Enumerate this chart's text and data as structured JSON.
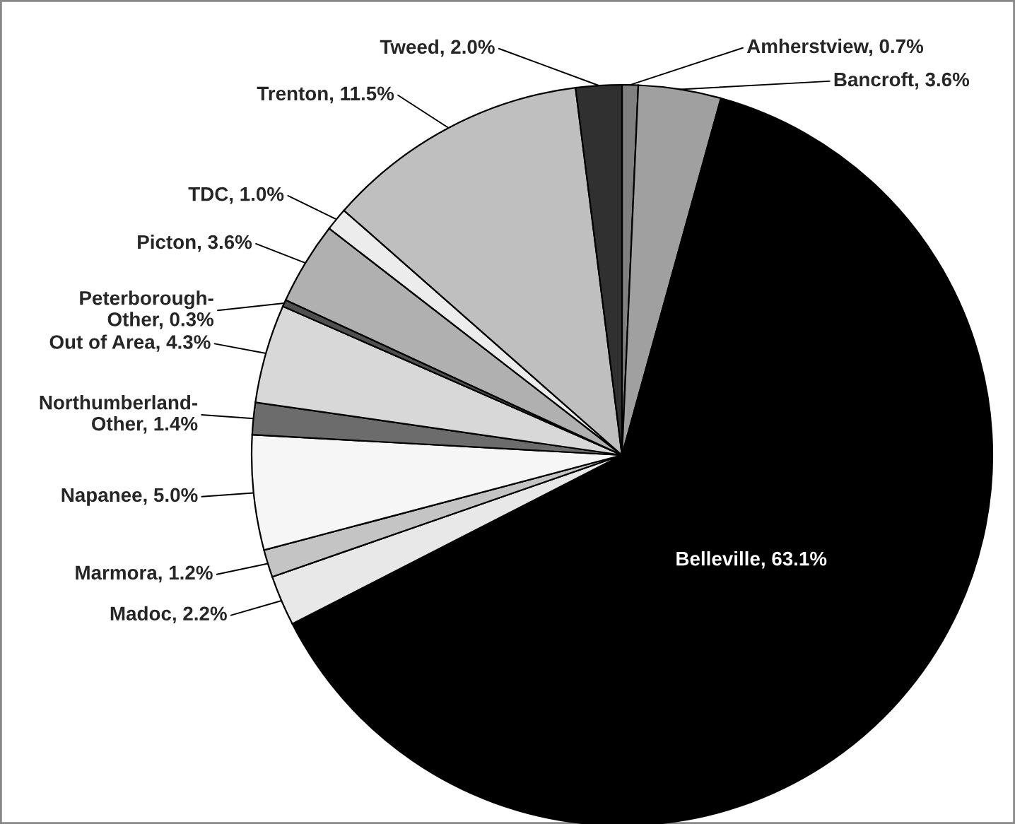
{
  "chart_data": {
    "type": "pie",
    "categories": [
      "Amherstview",
      "Bancroft",
      "Belleville",
      "Madoc",
      "Marmora",
      "Napanee",
      "Northumberland-Other",
      "Out of Area",
      "Peterborough-Other",
      "Picton",
      "TDC",
      "Trenton",
      "Tweed"
    ],
    "values": [
      0.7,
      3.6,
      63.1,
      2.2,
      1.2,
      5.0,
      1.4,
      4.3,
      0.3,
      3.6,
      1.0,
      11.5,
      2.0
    ],
    "value_labels": [
      "0.7%",
      "3.6%",
      "63.1%",
      "2.2%",
      "1.2%",
      "5.0%",
      "1.4%",
      "4.3%",
      "0.3%",
      "3.6%",
      "1.0%",
      "11.5%",
      "2.0%"
    ],
    "colors": [
      "#808080",
      "#a0a0a0",
      "#000000",
      "#e8e8e8",
      "#c4c4c4",
      "#f6f6f6",
      "#6c6c6c",
      "#d8d8d8",
      "#505050",
      "#b0b0b0",
      "#ececec",
      "#bfbfbf",
      "#303030"
    ],
    "legend": false
  }
}
